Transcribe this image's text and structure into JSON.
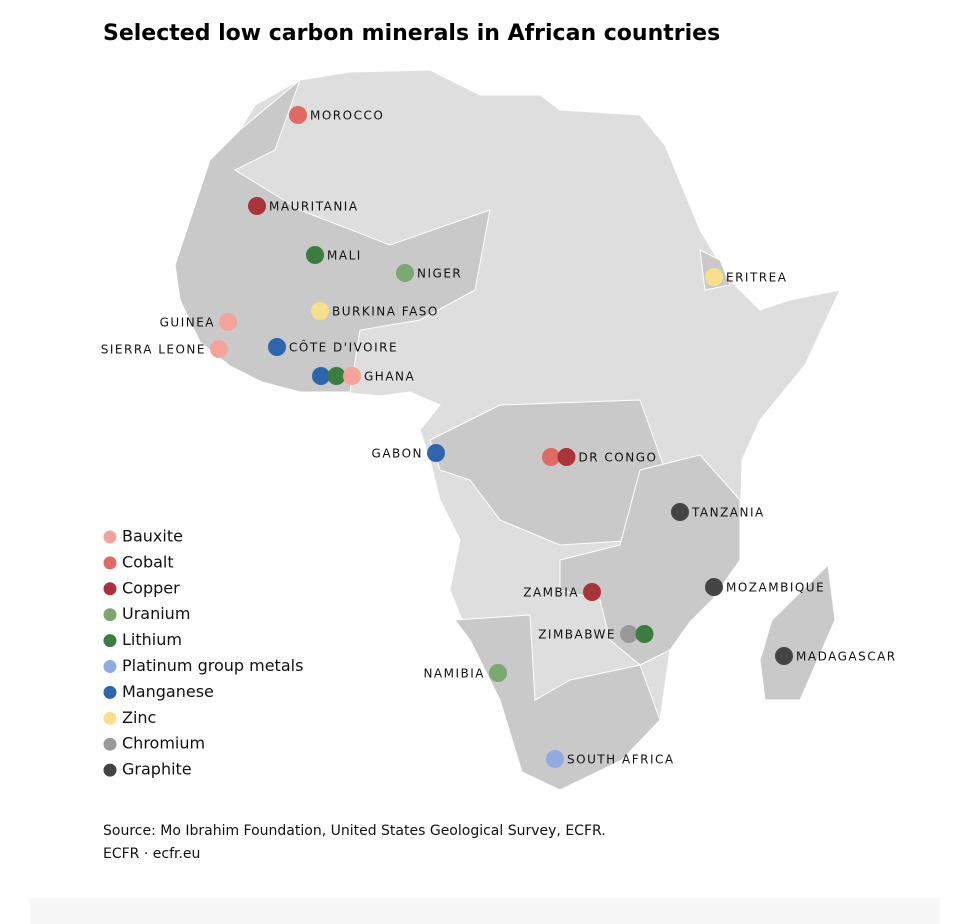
{
  "title": "Selected low carbon minerals in African countries",
  "legend": [
    {
      "name": "Bauxite",
      "color": "#f4a39a"
    },
    {
      "name": "Cobalt",
      "color": "#e06a64"
    },
    {
      "name": "Copper",
      "color": "#a8343a"
    },
    {
      "name": "Uranium",
      "color": "#7aa870"
    },
    {
      "name": "Lithium",
      "color": "#3a7d3e"
    },
    {
      "name": "Platinum group metals",
      "color": "#8fabe0"
    },
    {
      "name": "Manganese",
      "color": "#2d66ad"
    },
    {
      "name": "Zinc",
      "color": "#f7e08c"
    },
    {
      "name": "Chromium",
      "color": "#999999"
    },
    {
      "name": "Graphite",
      "color": "#444444"
    }
  ],
  "countries": [
    {
      "label": "MOROCCO",
      "minerals": [
        "Cobalt"
      ]
    },
    {
      "label": "MAURITANIA",
      "minerals": [
        "Copper"
      ]
    },
    {
      "label": "MALI",
      "minerals": [
        "Lithium"
      ]
    },
    {
      "label": "NIGER",
      "minerals": [
        "Uranium"
      ]
    },
    {
      "label": "BURKINA FASO",
      "minerals": [
        "Zinc"
      ]
    },
    {
      "label": "GUINEA",
      "minerals": [
        "Bauxite"
      ]
    },
    {
      "label": "SIERRA LEONE",
      "minerals": [
        "Bauxite"
      ]
    },
    {
      "label": "CÔTE D'IVOIRE",
      "minerals": [
        "Manganese"
      ]
    },
    {
      "label": "GHANA",
      "minerals": [
        "Manganese",
        "Lithium",
        "Bauxite"
      ]
    },
    {
      "label": "GABON",
      "minerals": [
        "Manganese"
      ]
    },
    {
      "label": "DR CONGO",
      "minerals": [
        "Cobalt",
        "Copper"
      ]
    },
    {
      "label": "ERITREA",
      "minerals": [
        "Zinc"
      ]
    },
    {
      "label": "TANZANIA",
      "minerals": [
        "Graphite"
      ]
    },
    {
      "label": "ZAMBIA",
      "minerals": [
        "Copper"
      ]
    },
    {
      "label": "MOZAMBIQUE",
      "minerals": [
        "Graphite"
      ]
    },
    {
      "label": "ZIMBABWE",
      "minerals": [
        "Chromium",
        "Lithium"
      ]
    },
    {
      "label": "MADAGASCAR",
      "minerals": [
        "Graphite"
      ]
    },
    {
      "label": "NAMIBIA",
      "minerals": [
        "Uranium"
      ]
    },
    {
      "label": "SOUTH AFRICA",
      "minerals": [
        "Platinum group metals"
      ]
    }
  ],
  "source": "Source: Mo Ibrahim Foundation, United States Geological Survey, ECFR.",
  "credit": "ECFR · ecfr.eu"
}
